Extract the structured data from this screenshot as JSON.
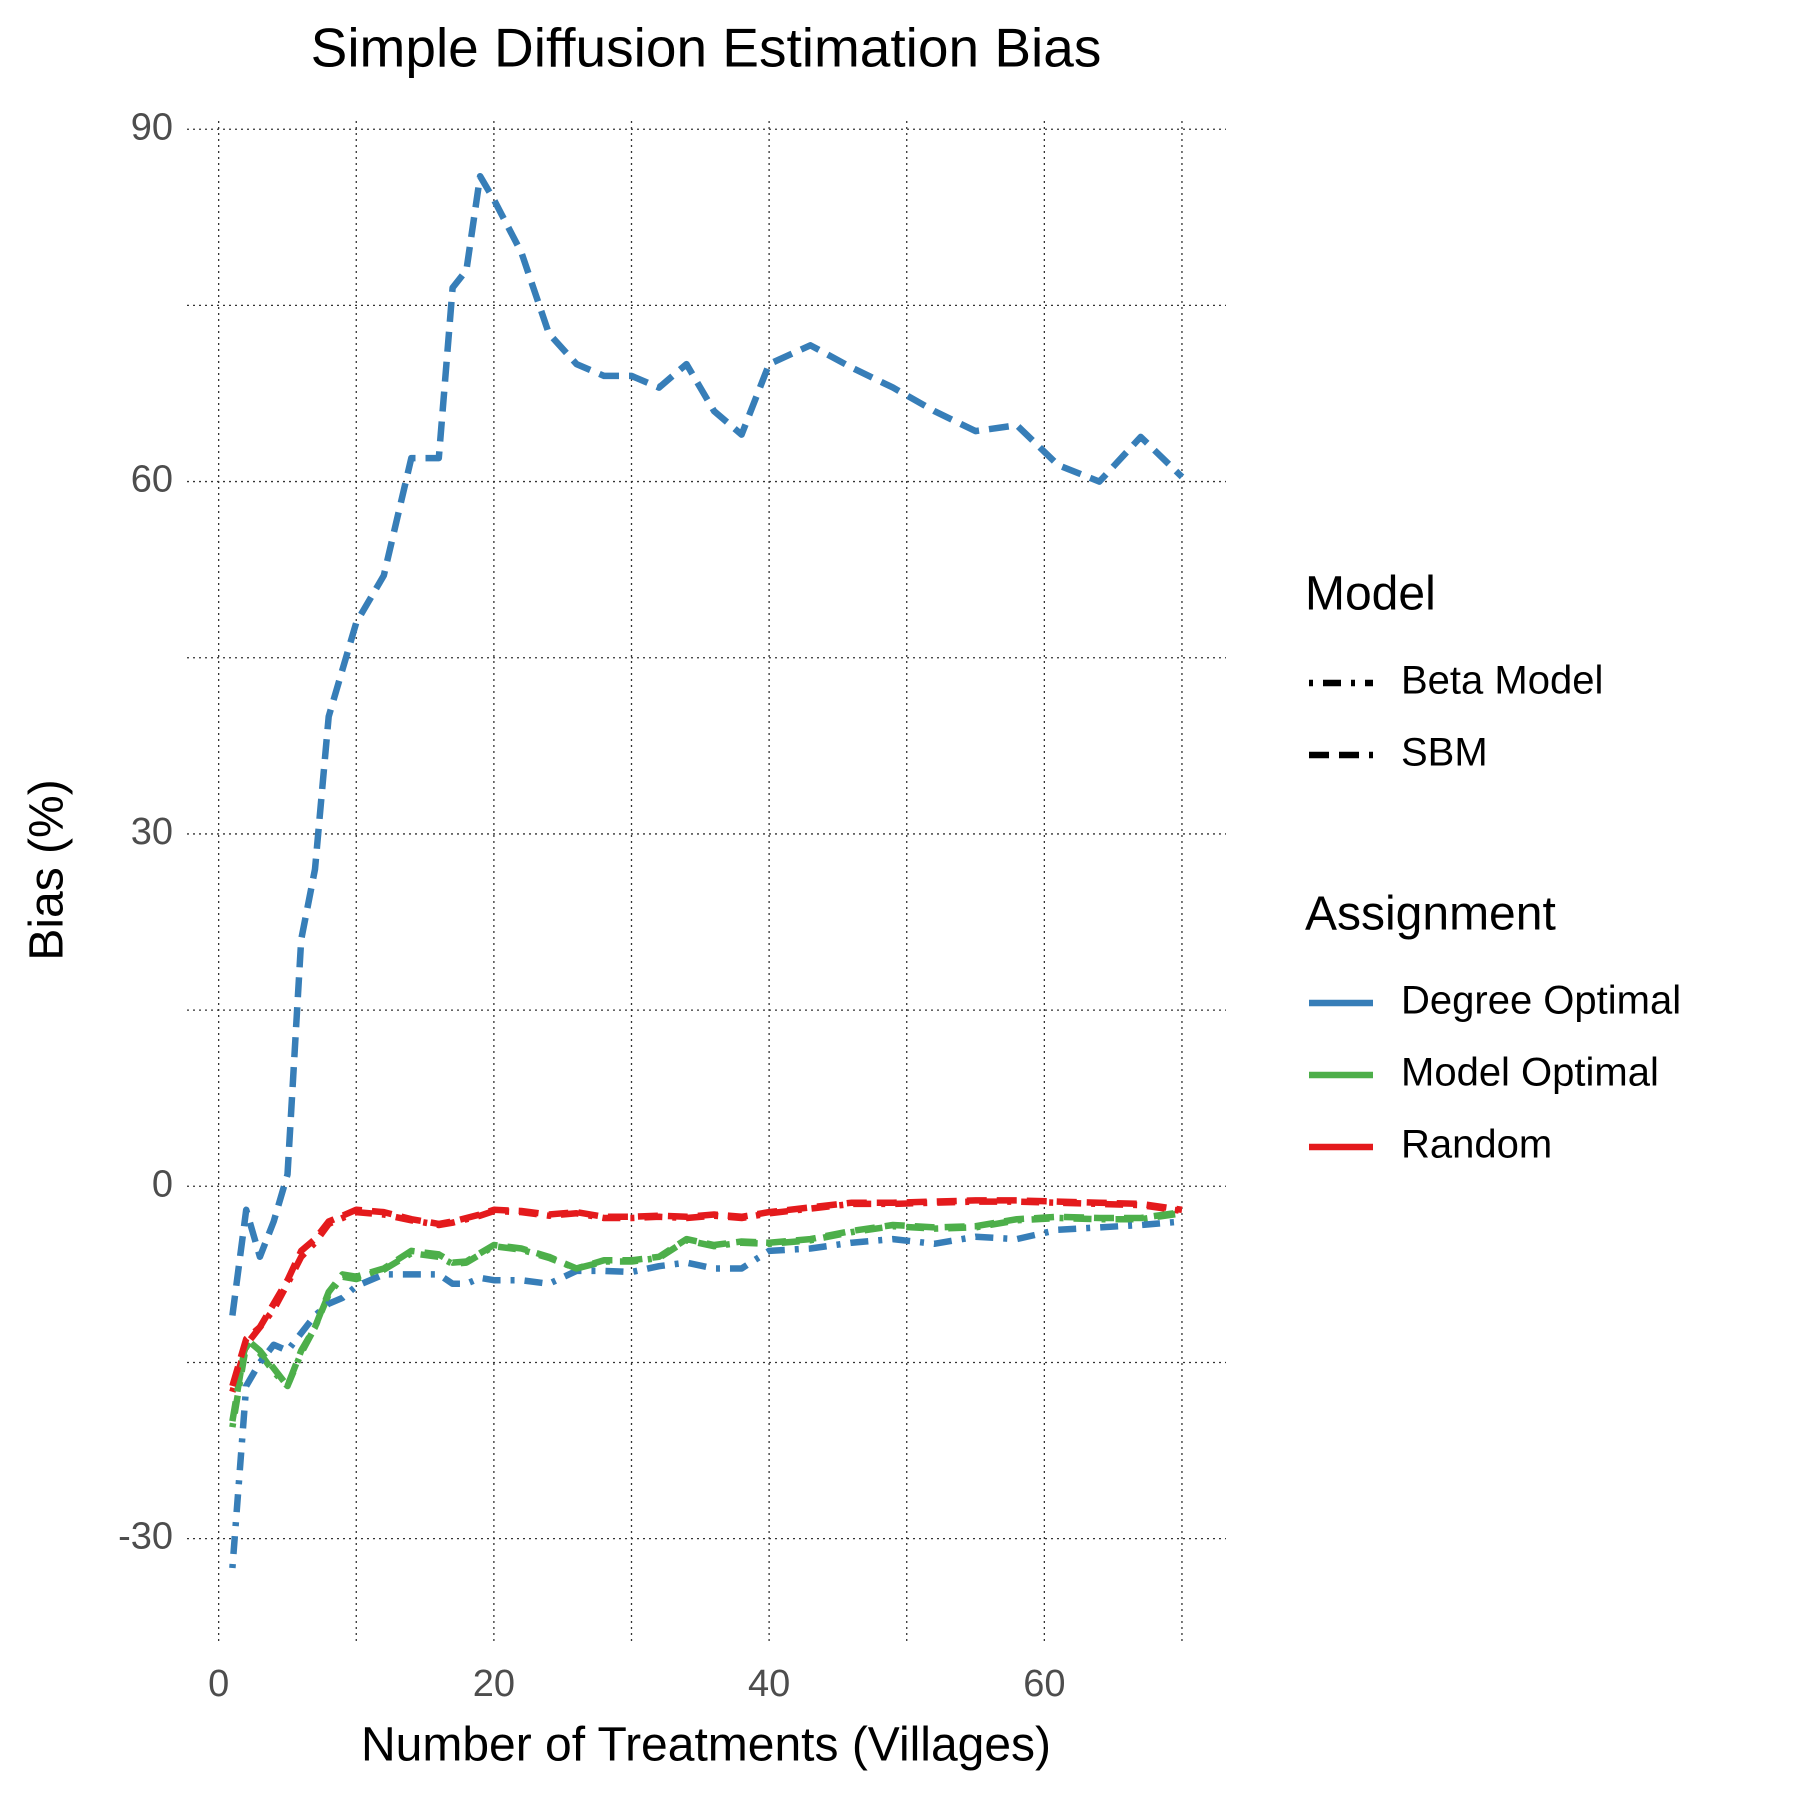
{
  "chart_data": {
    "type": "line",
    "title": "Simple Diffusion Estimation Bias",
    "x_label": "Number of Treatments (Villages)",
    "y_label": "Bias (%)",
    "xlim": [
      -2.3,
      73.2
    ],
    "ylim": [
      -38.8,
      90.7
    ],
    "xticks": [
      0,
      20,
      40,
      60
    ],
    "yticks": [
      -30,
      0,
      30,
      60,
      90
    ],
    "minor_xticks": [
      10,
      30,
      50,
      70
    ],
    "minor_yticks": [
      -15,
      15,
      45,
      75
    ],
    "grid": true,
    "x": [
      1,
      2,
      3,
      4,
      5,
      6,
      7,
      8,
      9,
      10,
      12,
      14,
      16,
      17,
      18,
      19,
      20,
      22,
      24,
      26,
      28,
      30,
      32,
      34,
      36,
      38,
      40,
      43,
      46,
      49,
      52,
      55,
      58,
      61,
      64,
      67,
      70
    ],
    "legend": {
      "position": "right",
      "groups": [
        {
          "title": "Model",
          "items": [
            {
              "label": "Beta Model",
              "dash": "4,10,18,10"
            },
            {
              "label": "SBM",
              "dash": "20,10"
            }
          ]
        },
        {
          "title": "Assignment",
          "items": [
            {
              "label": "Degree Optimal",
              "color": "#377EB8"
            },
            {
              "label": "Model Optimal",
              "color": "#4DAF4A"
            },
            {
              "label": "Random",
              "color": "#E41A1C"
            }
          ]
        }
      ]
    },
    "series": [
      {
        "model": 0,
        "assignment": 2,
        "values": [
          -17.5,
          -13.5,
          -12,
          -10.5,
          -8.3,
          -6,
          -4.8,
          -3.2,
          -2.7,
          -2.2,
          -2.4,
          -2.9,
          -3.3,
          -3.1,
          -2.8,
          -2.5,
          -2.1,
          -2.2,
          -2.5,
          -2.3,
          -2.7,
          -2.7,
          -2.6,
          -2.7,
          -2.5,
          -2.7,
          -2.3,
          -1.9,
          -1.5,
          -1.5,
          -1.4,
          -1.3,
          -1.3,
          -1.4,
          -1.5,
          -1.6,
          -2.1
        ]
      },
      {
        "model": 0,
        "assignment": 1,
        "values": [
          -20.5,
          -13.5,
          -14.2,
          -15.8,
          -17,
          -14.2,
          -12,
          -9.2,
          -7.7,
          -7.9,
          -7.1,
          -5.7,
          -6,
          -6.6,
          -6.5,
          -5.8,
          -5.1,
          -5.4,
          -6.1,
          -7,
          -6.4,
          -6.4,
          -6.1,
          -4.6,
          -5.1,
          -4.8,
          -4.9,
          -4.6,
          -3.9,
          -3.4,
          -3.6,
          -3.5,
          -2.9,
          -2.7,
          -2.8,
          -2.8,
          -2.3
        ]
      },
      {
        "model": 0,
        "assignment": 0,
        "values": [
          -32.5,
          -17,
          -15,
          -13.5,
          -14,
          -12.5,
          -11,
          -10,
          -9.5,
          -8.5,
          -7.5,
          -7.5,
          -7.5,
          -8.3,
          -8.3,
          -7.8,
          -8,
          -8,
          -8.3,
          -7.2,
          -7.2,
          -7.3,
          -6.8,
          -6.5,
          -7,
          -7,
          -5.5,
          -5.3,
          -4.8,
          -4.5,
          -4.9,
          -4.3,
          -4.5,
          -3.7,
          -3.5,
          -3.3,
          -3
        ]
      },
      {
        "model": 1,
        "assignment": 1,
        "values": [
          -20,
          -13,
          -14,
          -15.5,
          -17,
          -14,
          -12,
          -9,
          -7.5,
          -7.7,
          -7,
          -5.5,
          -5.8,
          -6.5,
          -6.4,
          -5.7,
          -5,
          -5.3,
          -6,
          -7,
          -6.3,
          -6.3,
          -6,
          -4.5,
          -5,
          -4.7,
          -4.8,
          -4.5,
          -3.8,
          -3.3,
          -3.5,
          -3.4,
          -2.8,
          -2.6,
          -2.7,
          -2.7,
          -2.2
        ]
      },
      {
        "model": 1,
        "assignment": 2,
        "values": [
          -17,
          -13,
          -12,
          -10,
          -8,
          -5.5,
          -4.5,
          -3,
          -2.5,
          -2,
          -2.2,
          -2.8,
          -3.2,
          -3,
          -2.7,
          -2.4,
          -2,
          -2.1,
          -2.4,
          -2.2,
          -2.6,
          -2.6,
          -2.5,
          -2.6,
          -2.4,
          -2.6,
          -2.2,
          -1.8,
          -1.4,
          -1.4,
          -1.3,
          -1.2,
          -1.2,
          -1.3,
          -1.4,
          -1.5,
          -2
        ]
      },
      {
        "model": 1,
        "assignment": 0,
        "values": [
          -11,
          -2,
          -6,
          -3,
          1,
          21,
          27,
          40,
          44,
          48,
          52,
          62,
          62,
          76.5,
          78,
          86,
          84,
          79.5,
          72.6,
          70,
          69,
          69,
          68,
          70,
          66,
          64,
          70,
          71.6,
          69.7,
          68,
          66,
          64.3,
          64.8,
          61.4,
          60,
          63.8,
          60.4
        ]
      }
    ]
  }
}
